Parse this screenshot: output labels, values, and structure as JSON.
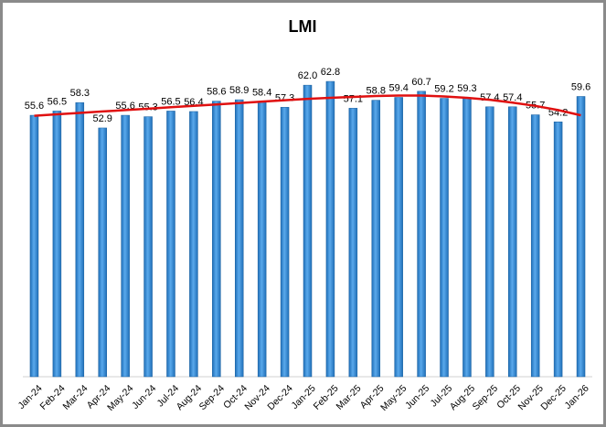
{
  "chart_data": {
    "type": "bar",
    "title": "LMI",
    "categories": [
      "Jan-24",
      "Feb-24",
      "Mar-24",
      "Apr-24",
      "May-24",
      "Jun-24",
      "Jul-24",
      "Aug-24",
      "Sep-24",
      "Oct-24",
      "Nov-24",
      "Dec-24",
      "Jan-25",
      "Feb-25",
      "Mar-25",
      "Apr-25",
      "May-25",
      "Jun-25",
      "Jul-25",
      "Aug-25",
      "Sep-25",
      "Oct-25",
      "Nov-25",
      "Dec-25",
      "Jan-26"
    ],
    "values": [
      55.6,
      56.5,
      58.3,
      52.9,
      55.6,
      55.3,
      56.5,
      56.4,
      58.6,
      58.9,
      58.4,
      57.3,
      62.0,
      62.8,
      57.1,
      58.8,
      59.4,
      60.7,
      59.2,
      59.3,
      57.4,
      57.4,
      55.7,
      54.2,
      59.6
    ],
    "value_labels": [
      "55.6",
      "56.5",
      "58.3",
      "52.9",
      "55.6",
      "55.3",
      "56.5",
      "56.4",
      "58.6",
      "58.9",
      "58.4",
      "57.3",
      "62.0",
      "62.8",
      "57.1",
      "58.8",
      "59.4",
      "60.7",
      "59.2",
      "59.3",
      "57.4",
      "57.4",
      "55.7",
      "54.2",
      "59.6"
    ],
    "color": "#3a8dd8",
    "trend": {
      "color": "#e01010",
      "values": [
        55.5,
        55.8,
        56.1,
        56.4,
        56.7,
        57.0,
        57.3,
        57.6,
        57.9,
        58.2,
        58.5,
        58.8,
        59.1,
        59.3,
        59.5,
        59.7,
        59.8,
        59.8,
        59.6,
        59.3,
        58.9,
        58.3,
        57.6,
        56.7,
        55.6
      ]
    },
    "ylim": [
      0,
      70
    ]
  }
}
